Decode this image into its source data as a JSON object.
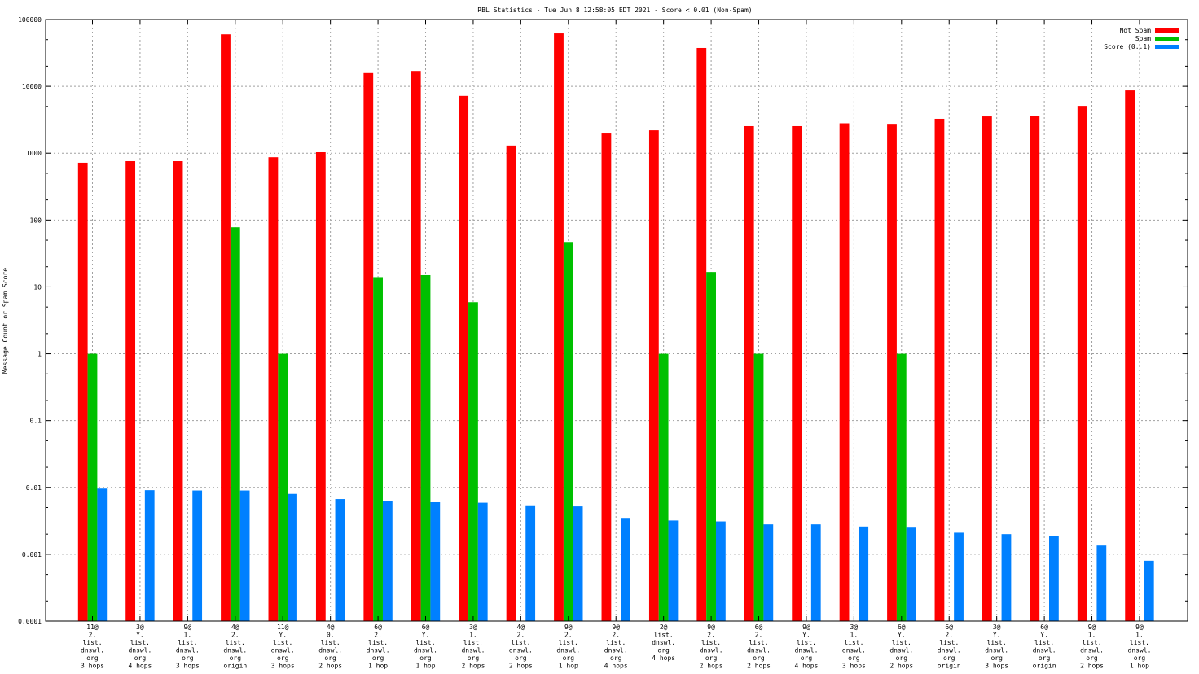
{
  "chart_data": {
    "type": "bar",
    "title": "RBL Statistics - Tue Jun  8 12:58:05 EDT 2021 - Score < 0.01 (Non-Spam)",
    "xlabel": "",
    "ylabel": "Message Count or Spam Score",
    "yscale": "log",
    "ylim": [
      0.0001,
      100000
    ],
    "yticks": [
      "0.0001",
      "0.001",
      "0.01",
      "0.1",
      "1",
      "10",
      "100",
      "1000",
      "10000",
      "100000"
    ],
    "grid": true,
    "legend_position": "top-right",
    "categories": [
      [
        "11@",
        "2.",
        "list.",
        "dnswl.",
        "org",
        "3 hops"
      ],
      [
        "3@",
        "Y.",
        "list.",
        "dnswl.",
        "org",
        "4 hops"
      ],
      [
        "9@",
        "1.",
        "list.",
        "dnswl.",
        "org",
        "3 hops"
      ],
      [
        "4@",
        "2.",
        "list.",
        "dnswl.",
        "org",
        "origin"
      ],
      [
        "11@",
        "Y.",
        "list.",
        "dnswl.",
        "org",
        "3 hops"
      ],
      [
        "4@",
        "0.",
        "list.",
        "dnswl.",
        "org",
        "2 hops"
      ],
      [
        "6@",
        "2.",
        "list.",
        "dnswl.",
        "org",
        "1 hop"
      ],
      [
        "6@",
        "Y.",
        "list.",
        "dnswl.",
        "org",
        "1 hop"
      ],
      [
        "3@",
        "1.",
        "list.",
        "dnswl.",
        "org",
        "2 hops"
      ],
      [
        "4@",
        "2.",
        "list.",
        "dnswl.",
        "org",
        "2 hops"
      ],
      [
        "9@",
        "2.",
        "list.",
        "dnswl.",
        "org",
        "1 hop"
      ],
      [
        "9@",
        "2.",
        "list.",
        "dnswl.",
        "org",
        "4 hops"
      ],
      [
        "2@",
        "list.",
        "dnswl.",
        "org",
        "4 hops"
      ],
      [
        "9@",
        "2.",
        "list.",
        "dnswl.",
        "org",
        "2 hops"
      ],
      [
        "6@",
        "2.",
        "list.",
        "dnswl.",
        "org",
        "2 hops"
      ],
      [
        "9@",
        "Y.",
        "list.",
        "dnswl.",
        "org",
        "4 hops"
      ],
      [
        "3@",
        "1.",
        "list.",
        "dnswl.",
        "org",
        "3 hops"
      ],
      [
        "6@",
        "Y.",
        "list.",
        "dnswl.",
        "org",
        "2 hops"
      ],
      [
        "6@",
        "2.",
        "list.",
        "dnswl.",
        "org",
        "origin"
      ],
      [
        "3@",
        "Y.",
        "list.",
        "dnswl.",
        "org",
        "3 hops"
      ],
      [
        "6@",
        "Y.",
        "list.",
        "dnswl.",
        "org",
        "origin"
      ],
      [
        "9@",
        "1.",
        "list.",
        "dnswl.",
        "org",
        "2 hops"
      ],
      [
        "9@",
        "1.",
        "list.",
        "dnswl.",
        "org",
        "1 hop"
      ]
    ],
    "series": [
      {
        "name": "Not Spam",
        "color": "#ff0000",
        "values": [
          720,
          760,
          760,
          60000,
          870,
          1035,
          15800,
          17000,
          7200,
          1300,
          62000,
          1970,
          2200,
          37500,
          2540,
          2540,
          2800,
          2750,
          3270,
          3550,
          3650,
          5100,
          8700
        ]
      },
      {
        "name": "Spam",
        "color": "#00c000",
        "values": [
          1,
          0,
          0,
          78,
          1,
          0,
          14,
          15,
          5.9,
          0,
          47,
          0,
          1,
          16.7,
          1,
          0,
          0,
          1,
          0,
          0,
          0,
          0,
          0
        ]
      },
      {
        "name": "Score (0..1)",
        "color": "#0080ff",
        "values": [
          0.0096,
          0.0091,
          0.009,
          0.009,
          0.008,
          0.0067,
          0.0062,
          0.006,
          0.0059,
          0.0054,
          0.0052,
          0.0035,
          0.0032,
          0.0031,
          0.0028,
          0.0028,
          0.0026,
          0.0025,
          0.0021,
          0.002,
          0.0019,
          0.00135,
          0.0008
        ]
      }
    ]
  }
}
